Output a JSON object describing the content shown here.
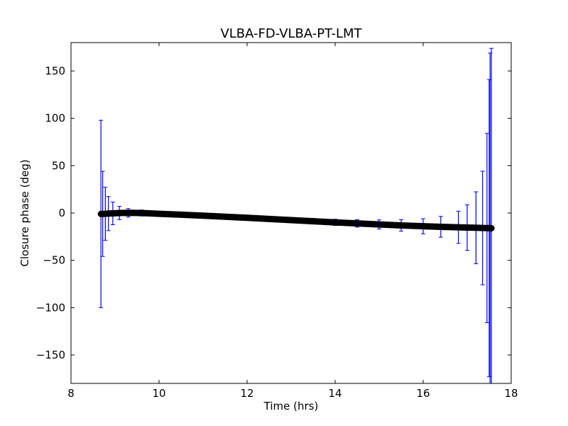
{
  "chart_data": {
    "type": "scatter",
    "title": "VLBA-FD-VLBA-PT-LMT",
    "xlabel": "Time (hrs)",
    "ylabel": "Closure phase (deg)",
    "xlim": [
      8,
      18
    ],
    "ylim": [
      -180,
      180
    ],
    "xticks": [
      8,
      10,
      12,
      14,
      16,
      18
    ],
    "yticks": [
      -150,
      -100,
      -50,
      0,
      50,
      100,
      150
    ],
    "grid": false,
    "legend": "none",
    "series": [
      {
        "color": "#0000ff",
        "marker_color": "#000000",
        "x": [
          8.68,
          8.72,
          8.78,
          8.85,
          8.95,
          9.1,
          9.3,
          9.6,
          10.0,
          10.5,
          11.0,
          11.5,
          12.0,
          12.5,
          13.0,
          13.5,
          14.0,
          14.5,
          15.0,
          15.5,
          16.0,
          16.4,
          16.8,
          17.0,
          17.2,
          17.35,
          17.45,
          17.5,
          17.52,
          17.55
        ],
        "y": [
          -1.0,
          -0.9,
          -0.8,
          -0.6,
          -0.4,
          0.0,
          0.2,
          0.0,
          -0.8,
          -1.8,
          -2.8,
          -3.9,
          -5.1,
          -6.3,
          -7.5,
          -8.7,
          -9.9,
          -11.0,
          -12.1,
          -13.1,
          -14.0,
          -14.6,
          -15.1,
          -15.4,
          -15.6,
          -15.8,
          -15.9,
          -16.0,
          -16.0,
          -16.1
        ],
        "yerr": [
          99.0,
          45.0,
          28.0,
          18.0,
          12.0,
          7.0,
          4.5,
          3.2,
          2.6,
          2.3,
          2.2,
          2.2,
          2.3,
          2.4,
          2.6,
          2.9,
          3.3,
          3.9,
          4.8,
          6.0,
          8.0,
          11.0,
          17.0,
          24.0,
          38.0,
          60.0,
          100.0,
          157.0,
          185.0,
          190.0
        ]
      }
    ]
  }
}
